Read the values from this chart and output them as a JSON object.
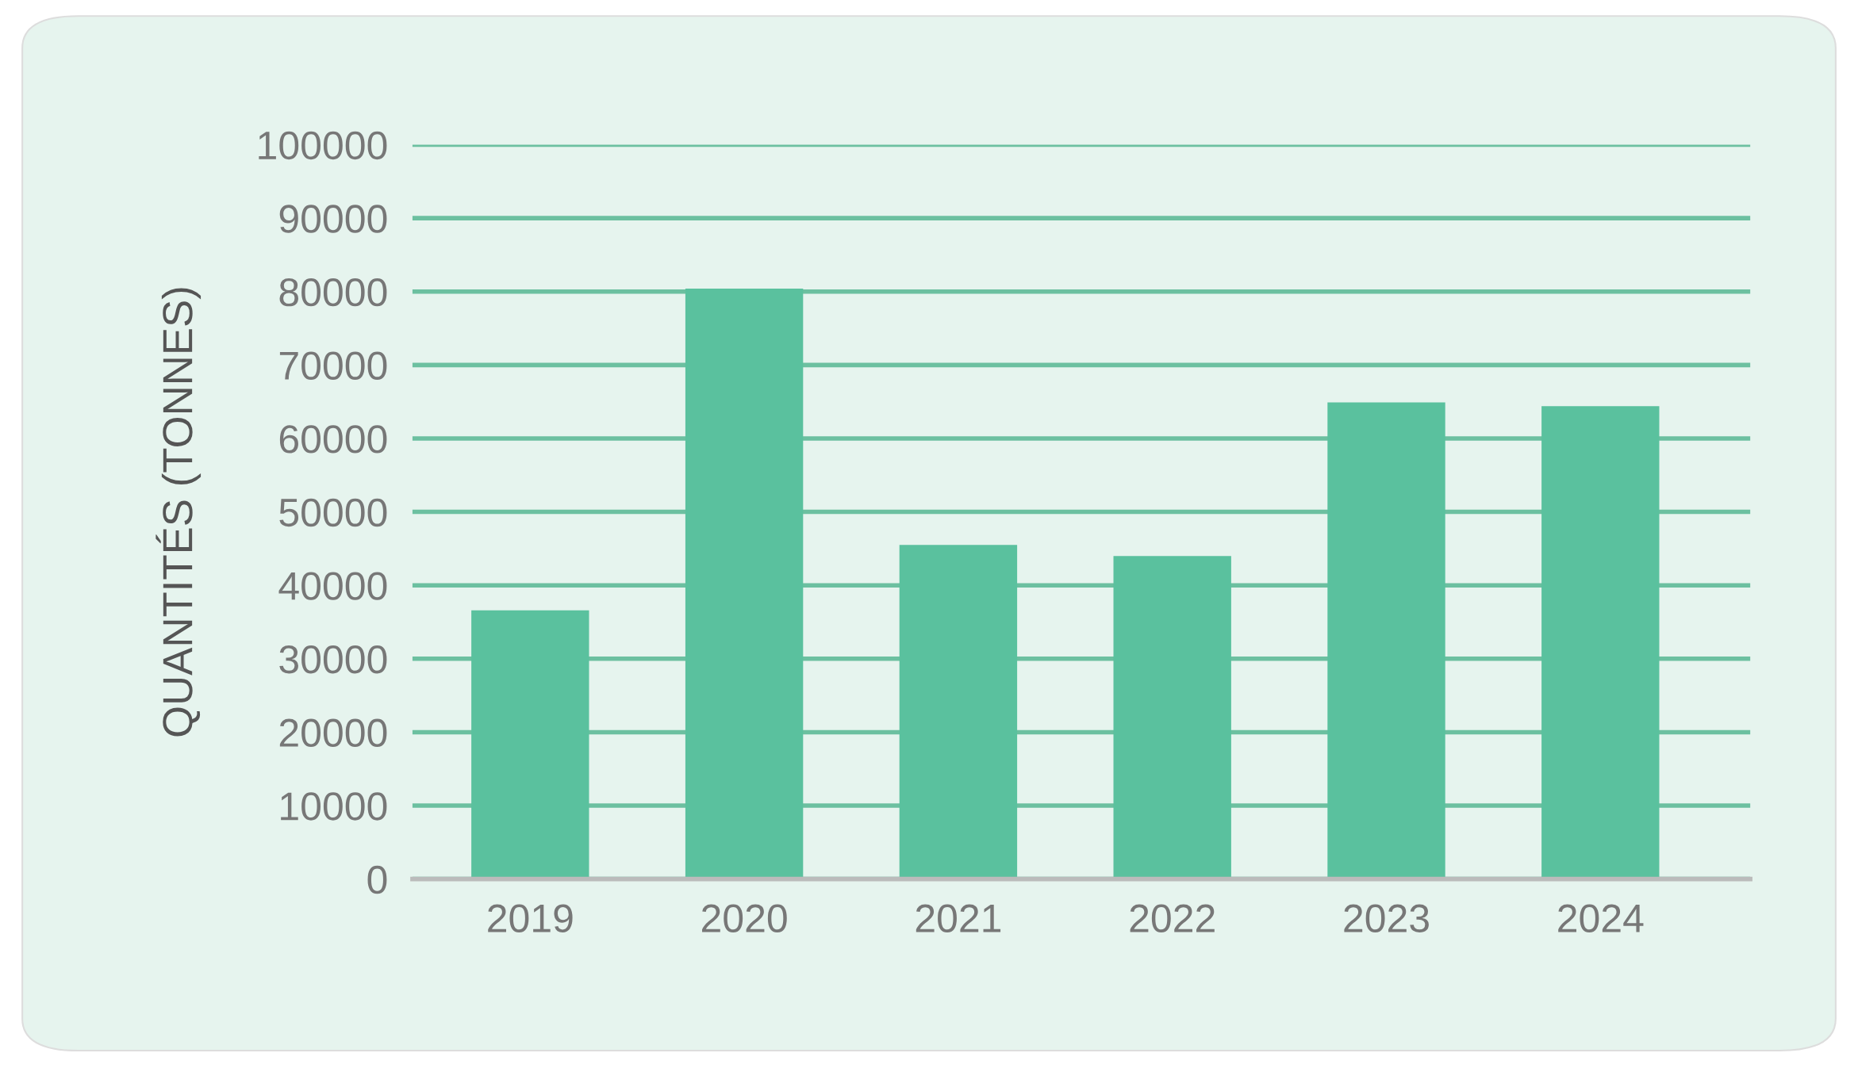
{
  "chart_data": {
    "type": "bar",
    "ylabel": "QUANTITÉS (TONNES)",
    "categories": [
      "2019",
      "2020",
      "2021",
      "2022",
      "2023",
      "2024"
    ],
    "values": [
      36600,
      80400,
      45500,
      44000,
      64900,
      64400
    ],
    "color": "#5ac19e",
    "ylim": [
      0,
      100000
    ],
    "yticks": [
      0,
      10000,
      20000,
      30000,
      40000,
      50000,
      60000,
      70000,
      80000,
      90000,
      100000
    ],
    "grid": "y"
  }
}
